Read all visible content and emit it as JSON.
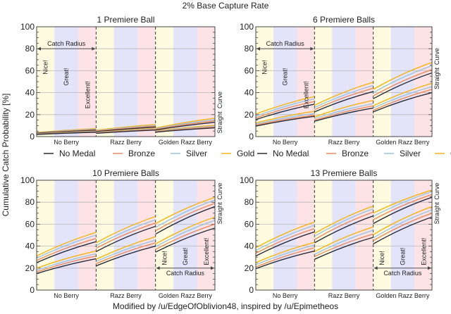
{
  "title": "2% Base Capture Rate",
  "ylabel": "Cumulative Catch Probability [%]",
  "caption": "Modified by /u/EdgeOfOblivion48, inspired by /u/Epimetheos",
  "colors": {
    "No Medal": "#2b2b3a",
    "Bronze": "#ec8a5e",
    "Silver": "#9ec3df",
    "Gold": "#f2b418",
    "band_nice": "#fffbe0",
    "band_great": "#e3e3fa",
    "band_excellent": "#fde3e6"
  },
  "legend": [
    "No Medal",
    "Bronze",
    "Silver",
    "Gold"
  ],
  "band_labels": [
    "Nice!",
    "Great!",
    "Excellent!"
  ],
  "catch_radius_label": "Catch Radius",
  "throw_labels": [
    "Straight",
    "Curve"
  ],
  "chart_data": [
    {
      "type": "line",
      "title": "1 Premiere Ball",
      "categories": [
        "No Berry",
        "Razz Berry",
        "Golden Razz Berry"
      ],
      "ylim": [
        0,
        100
      ],
      "yticks": [
        0,
        20,
        40,
        60,
        80,
        100
      ],
      "grid": true,
      "legend": "bottom",
      "annotation_segment": 0,
      "annotation_position": "top",
      "series": [
        {
          "name": "No Medal",
          "throw": "Straight",
          "segments": [
            [
              2,
              4
            ],
            [
              3,
              6
            ],
            [
              4,
              8
            ]
          ]
        },
        {
          "name": "Bronze",
          "throw": "Straight",
          "segments": [
            [
              2.2,
              4.3
            ],
            [
              3.3,
              6.5
            ],
            [
              4.4,
              8.8
            ]
          ]
        },
        {
          "name": "Silver",
          "throw": "Straight",
          "segments": [
            [
              2.4,
              4.7
            ],
            [
              3.6,
              7
            ],
            [
              4.8,
              9.5
            ]
          ]
        },
        {
          "name": "Gold",
          "throw": "Straight",
          "segments": [
            [
              2.6,
              5
            ],
            [
              3.9,
              7.6
            ],
            [
              5.2,
              10.3
            ]
          ]
        },
        {
          "name": "No Medal",
          "throw": "Curve",
          "segments": [
            [
              3,
              5.8
            ],
            [
              4.5,
              8.7
            ],
            [
              6,
              13
            ]
          ]
        },
        {
          "name": "Bronze",
          "throw": "Curve",
          "segments": [
            [
              3.3,
              6.3
            ],
            [
              5,
              9.5
            ],
            [
              6.6,
              14.3
            ]
          ]
        },
        {
          "name": "Silver",
          "throw": "Curve",
          "segments": [
            [
              3.6,
              6.8
            ],
            [
              5.4,
              10.2
            ],
            [
              7.2,
              15.4
            ]
          ]
        },
        {
          "name": "Gold",
          "throw": "Curve",
          "segments": [
            [
              3.9,
              7.3
            ],
            [
              5.8,
              11
            ],
            [
              7.8,
              16.8
            ]
          ]
        }
      ]
    },
    {
      "type": "line",
      "title": "6 Premiere Balls",
      "categories": [
        "No Berry",
        "Razz Berry",
        "Golden Razz Berry"
      ],
      "ylim": [
        0,
        100
      ],
      "yticks": [
        0,
        20,
        40,
        60,
        80,
        100
      ],
      "grid": true,
      "legend": "bottom",
      "annotation_segment": 0,
      "annotation_position": "top",
      "series": [
        {
          "name": "No Medal",
          "throw": "Straight",
          "segments": [
            [
              9.5,
              18.5
            ],
            [
              14,
              26
            ],
            [
              22.5,
              40
            ]
          ]
        },
        {
          "name": "Bronze",
          "throw": "Straight",
          "segments": [
            [
              10.5,
              19.5
            ],
            [
              15,
              28
            ],
            [
              24,
              43
            ]
          ]
        },
        {
          "name": "Silver",
          "throw": "Straight",
          "segments": [
            [
              11.5,
              21
            ],
            [
              16.5,
              30
            ],
            [
              26,
              45.5
            ]
          ]
        },
        {
          "name": "Gold",
          "throw": "Straight",
          "segments": [
            [
              12.5,
              23
            ],
            [
              18,
              33
            ],
            [
              28,
              48.5
            ]
          ]
        },
        {
          "name": "No Medal",
          "throw": "Curve",
          "segments": [
            [
              15.5,
              29.5
            ],
            [
              22.5,
              41
            ],
            [
              34.5,
              58
            ]
          ]
        },
        {
          "name": "Bronze",
          "throw": "Curve",
          "segments": [
            [
              17,
              32
            ],
            [
              24.5,
              44
            ],
            [
              37,
              61
            ]
          ]
        },
        {
          "name": "Silver",
          "throw": "Curve",
          "segments": [
            [
              18.5,
              34.5
            ],
            [
              26.5,
              46.5
            ],
            [
              40,
              64.5
            ]
          ]
        },
        {
          "name": "Gold",
          "throw": "Curve",
          "segments": [
            [
              20.5,
              36.5
            ],
            [
              28.5,
              49.5
            ],
            [
              43,
              67.5
            ]
          ]
        }
      ]
    },
    {
      "type": "line",
      "title": "10 Premiere Balls",
      "categories": [
        "No Berry",
        "Razz Berry",
        "Golden Razz Berry"
      ],
      "ylim": [
        0,
        100
      ],
      "yticks": [
        0,
        20,
        40,
        60,
        80,
        100
      ],
      "grid": true,
      "legend": "none",
      "annotation_segment": 2,
      "annotation_position": "bottom",
      "series": [
        {
          "name": "No Medal",
          "throw": "Straight",
          "segments": [
            [
              15,
              28.5
            ],
            [
              22,
              40
            ],
            [
              34.5,
              56.5
            ]
          ]
        },
        {
          "name": "Bronze",
          "throw": "Straight",
          "segments": [
            [
              16.5,
              31
            ],
            [
              24,
              43
            ],
            [
              37,
              60
            ]
          ]
        },
        {
          "name": "Silver",
          "throw": "Straight",
          "segments": [
            [
              18,
              33
            ],
            [
              26,
              45.5
            ],
            [
              39.5,
              63.5
            ]
          ]
        },
        {
          "name": "Gold",
          "throw": "Straight",
          "segments": [
            [
              20,
              35.5
            ],
            [
              28,
              48.5
            ],
            [
              42,
              66.5
            ]
          ]
        },
        {
          "name": "No Medal",
          "throw": "Curve",
          "segments": [
            [
              25,
              44
            ],
            [
              35,
              58
            ],
            [
              51,
              76
            ]
          ]
        },
        {
          "name": "Bronze",
          "throw": "Curve",
          "segments": [
            [
              27,
              47
            ],
            [
              38,
              61
            ],
            [
              54,
              79
            ]
          ]
        },
        {
          "name": "Silver",
          "throw": "Curve",
          "segments": [
            [
              29,
              50
            ],
            [
              40.5,
              64
            ],
            [
              57,
              82
            ]
          ]
        },
        {
          "name": "Gold",
          "throw": "Curve",
          "segments": [
            [
              31,
              52.5
            ],
            [
              43,
              67
            ],
            [
              60.5,
              84.5
            ]
          ]
        }
      ]
    },
    {
      "type": "line",
      "title": "13 Premiere Balls",
      "categories": [
        "No Berry",
        "Razz Berry",
        "Golden Razz Berry"
      ],
      "ylim": [
        0,
        100
      ],
      "yticks": [
        0,
        20,
        40,
        60,
        80,
        100
      ],
      "grid": true,
      "legend": "none",
      "annotation_segment": 2,
      "annotation_position": "bottom",
      "series": [
        {
          "name": "No Medal",
          "throw": "Straight",
          "segments": [
            [
              19.5,
              35.5
            ],
            [
              28,
              48
            ],
            [
              42,
              66.5
            ]
          ]
        },
        {
          "name": "Bronze",
          "throw": "Straight",
          "segments": [
            [
              21,
              38.5
            ],
            [
              30.5,
              51
            ],
            [
              45,
              70
            ]
          ]
        },
        {
          "name": "Silver",
          "throw": "Straight",
          "segments": [
            [
              23,
              41
            ],
            [
              32.5,
              54.5
            ],
            [
              47.5,
              73
            ]
          ]
        },
        {
          "name": "Gold",
          "throw": "Straight",
          "segments": [
            [
              25,
              43.5
            ],
            [
              35,
              57.5
            ],
            [
              50.5,
              76
            ]
          ]
        },
        {
          "name": "No Medal",
          "throw": "Curve",
          "segments": [
            [
              31,
              53
            ],
            [
              43,
              67.5
            ],
            [
              60.5,
              84.5
            ]
          ]
        },
        {
          "name": "Bronze",
          "throw": "Curve",
          "segments": [
            [
              33.5,
              56
            ],
            [
              46,
              71
            ],
            [
              64,
              87
            ]
          ]
        },
        {
          "name": "Silver",
          "throw": "Curve",
          "segments": [
            [
              36,
              59
            ],
            [
              49,
              74
            ],
            [
              67,
              89.5
            ]
          ]
        },
        {
          "name": "Gold",
          "throw": "Curve",
          "segments": [
            [
              38.5,
              62
            ],
            [
              51.5,
              76.5
            ],
            [
              70,
              91
            ]
          ]
        }
      ]
    }
  ]
}
